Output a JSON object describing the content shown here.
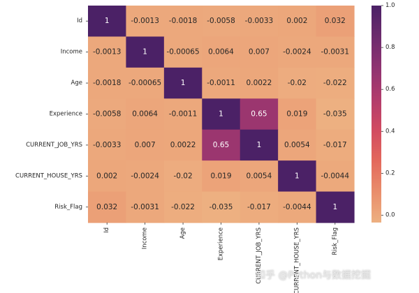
{
  "chart_data": {
    "type": "heatmap",
    "title": "",
    "xlabel": "",
    "ylabel": "",
    "row_labels": [
      "Id",
      "Income",
      "Age",
      "Experience",
      "CURRENT_JOB_YRS",
      "CURRENT_HOUSE_YRS",
      "Risk_Flag"
    ],
    "col_labels": [
      "Id",
      "Income",
      "Age",
      "Experience",
      "CURRENT_JOB_YRS",
      "CURRENT_HOUSE_YRS",
      "Risk_Flag"
    ],
    "values": [
      [
        1,
        -0.0013,
        -0.0018,
        -0.0058,
        -0.0033,
        0.002,
        0.032
      ],
      [
        -0.0013,
        1,
        -0.00065,
        0.0064,
        0.007,
        -0.0024,
        -0.0031
      ],
      [
        -0.0018,
        -0.00065,
        1,
        -0.0011,
        0.0022,
        -0.02,
        -0.022
      ],
      [
        -0.0058,
        0.0064,
        -0.0011,
        1,
        0.65,
        0.019,
        -0.035
      ],
      [
        -0.0033,
        0.007,
        0.0022,
        0.65,
        1,
        0.0054,
        -0.017
      ],
      [
        0.002,
        -0.0024,
        -0.02,
        0.019,
        0.0054,
        1,
        -0.0044
      ],
      [
        0.032,
        -0.0031,
        -0.022,
        -0.035,
        -0.017,
        -0.0044,
        1
      ]
    ],
    "value_labels": [
      [
        "1",
        "-0.0013",
        "-0.0018",
        "-0.0058",
        "-0.0033",
        "0.002",
        "0.032"
      ],
      [
        "-0.0013",
        "1",
        "-0.00065",
        "0.0064",
        "0.007",
        "-0.0024",
        "-0.0031"
      ],
      [
        "-0.0018",
        "-0.00065",
        "1",
        "-0.0011",
        "0.0022",
        "-0.02",
        "-0.022"
      ],
      [
        "-0.0058",
        "0.0064",
        "-0.0011",
        "1",
        "0.65",
        "0.019",
        "-0.035"
      ],
      [
        "-0.0033",
        "0.007",
        "0.0022",
        "0.65",
        "1",
        "0.0054",
        "-0.017"
      ],
      [
        "0.002",
        "-0.0024",
        "-0.02",
        "0.019",
        "0.0054",
        "1",
        "-0.0044"
      ],
      [
        "0.032",
        "-0.0031",
        "-0.022",
        "-0.035",
        "-0.017",
        "-0.0044",
        "1"
      ]
    ],
    "colorbar": {
      "range": [
        -0.035,
        1.0
      ],
      "ticks": [
        0.0,
        0.2,
        0.4,
        0.6,
        0.8,
        1.0
      ],
      "tick_labels": [
        "0.0",
        "0.2",
        "0.4",
        "0.6",
        "0.8",
        "1.0"
      ],
      "colormap": "flare",
      "color_stops": [
        "#edb081",
        "#e98d6b",
        "#e3685c",
        "#d14a61",
        "#b13c6c",
        "#8f3371",
        "#6c2b6d",
        "#4b2166"
      ]
    },
    "annotation_light_color": "#ffffff",
    "annotation_dark_color": "#262626",
    "grid": false,
    "legend": "right"
  },
  "watermark": "知乎 @Python与数据挖掘"
}
